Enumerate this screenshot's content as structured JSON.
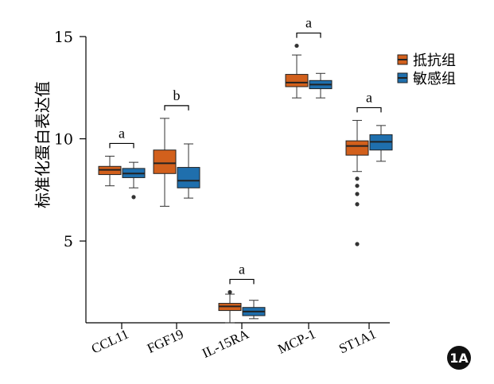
{
  "figure_badge": "1A",
  "chart_data": {
    "type": "box",
    "ylabel": "标准化蛋白表达值",
    "xlabel": "",
    "ylim": [
      1,
      15
    ],
    "yticks": [
      5,
      10,
      15
    ],
    "legend_position": "top-right",
    "categories": [
      "CCL11",
      "FGF19",
      "IL-15RA",
      "MCP-1",
      "ST1A1"
    ],
    "series": [
      {
        "name": "抵抗组",
        "color": "#D2601C"
      },
      {
        "name": "敏感组",
        "color": "#1F6FAD"
      }
    ],
    "boxes": [
      {
        "category": "CCL11",
        "significance": "a",
        "groups": [
          {
            "min": 7.7,
            "q1": 8.25,
            "median": 8.48,
            "q3": 8.65,
            "max": 9.15,
            "outliers": []
          },
          {
            "min": 7.6,
            "q1": 8.1,
            "median": 8.3,
            "q3": 8.55,
            "max": 8.85,
            "outliers": [
              7.15
            ]
          }
        ]
      },
      {
        "category": "FGF19",
        "significance": "b",
        "groups": [
          {
            "min": 6.7,
            "q1": 8.3,
            "median": 8.8,
            "q3": 9.45,
            "max": 11.0,
            "outliers": []
          },
          {
            "min": 7.1,
            "q1": 7.6,
            "median": 7.95,
            "q3": 8.6,
            "max": 9.75,
            "outliers": []
          }
        ]
      },
      {
        "category": "IL-15RA",
        "significance": "a",
        "groups": [
          {
            "min": 1.0,
            "q1": 1.6,
            "median": 1.8,
            "q3": 1.95,
            "max": 2.4,
            "outliers": [
              2.5
            ]
          },
          {
            "min": 1.2,
            "q1": 1.35,
            "median": 1.55,
            "q3": 1.75,
            "max": 2.1,
            "outliers": []
          }
        ]
      },
      {
        "category": "MCP-1",
        "significance": "a",
        "groups": [
          {
            "min": 12.0,
            "q1": 12.55,
            "median": 12.75,
            "q3": 13.15,
            "max": 14.1,
            "outliers": [
              14.55
            ]
          },
          {
            "min": 12.0,
            "q1": 12.45,
            "median": 12.65,
            "q3": 12.85,
            "max": 13.2,
            "outliers": []
          }
        ]
      },
      {
        "category": "ST1A1",
        "significance": "a",
        "groups": [
          {
            "min": 8.4,
            "q1": 9.2,
            "median": 9.65,
            "q3": 9.9,
            "max": 10.9,
            "outliers": [
              8.05,
              7.7,
              7.3,
              6.8,
              4.85
            ]
          },
          {
            "min": 8.9,
            "q1": 9.45,
            "median": 9.85,
            "q3": 10.2,
            "max": 10.65,
            "outliers": []
          }
        ]
      }
    ]
  }
}
